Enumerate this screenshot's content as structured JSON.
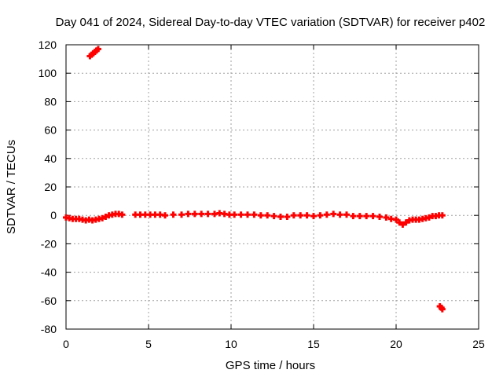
{
  "chart_data": {
    "type": "scatter",
    "title": "Day 041 of 2024, Sidereal Day-to-day VTEC variation (SDTVAR) for receiver p402",
    "xlabel": "GPS time / hours",
    "ylabel": "SDTVAR / TECUs",
    "xlim": [
      0,
      25
    ],
    "ylim": [
      -80,
      120
    ],
    "xticks": [
      0,
      5,
      10,
      15,
      20,
      25
    ],
    "yticks": [
      -80,
      -60,
      -40,
      -20,
      0,
      20,
      40,
      60,
      80,
      100,
      120
    ],
    "x_tick_labels": [
      "0",
      "5",
      "10",
      "15",
      "20",
      "25"
    ],
    "y_tick_labels": [
      "-80",
      "-60",
      "-40",
      "-20",
      "0",
      "20",
      "40",
      "60",
      "80",
      "100",
      "120"
    ],
    "grid": true,
    "series": [
      {
        "name": "SDTVAR",
        "color": "#ff0000",
        "x": [
          0.0,
          0.2,
          0.4,
          0.6,
          0.8,
          1.0,
          1.2,
          1.4,
          1.6,
          1.8,
          2.0,
          2.2,
          2.4,
          2.6,
          2.8,
          3.0,
          3.2,
          3.4,
          4.2,
          4.5,
          4.8,
          5.1,
          5.4,
          5.7,
          6.0,
          6.5,
          7.0,
          7.4,
          7.8,
          8.2,
          8.6,
          9.0,
          9.3,
          9.6,
          9.9,
          10.2,
          10.6,
          11.0,
          11.4,
          11.8,
          12.2,
          12.6,
          13.0,
          13.4,
          13.8,
          14.2,
          14.6,
          15.0,
          15.4,
          15.8,
          16.2,
          16.6,
          17.0,
          17.4,
          17.8,
          18.2,
          18.6,
          19.0,
          19.4,
          19.7,
          20.0,
          20.2,
          20.4,
          20.6,
          20.8,
          21.0,
          21.2,
          21.4,
          21.6,
          21.8,
          22.0,
          22.2,
          22.4,
          22.6,
          22.8,
          1.45,
          1.55,
          1.65,
          1.75,
          1.85,
          1.95,
          22.65,
          22.75,
          22.8
        ],
        "y": [
          -1.5,
          -2.0,
          -2.5,
          -2.5,
          -2.5,
          -3.0,
          -3.5,
          -3.0,
          -3.5,
          -3.0,
          -2.5,
          -2.0,
          -1.0,
          0.0,
          0.5,
          1.0,
          1.0,
          0.5,
          0.5,
          0.5,
          0.5,
          0.5,
          0.5,
          0.5,
          0.0,
          0.5,
          0.5,
          1.0,
          1.0,
          1.0,
          1.0,
          1.0,
          1.5,
          1.0,
          0.5,
          0.5,
          0.5,
          0.5,
          0.5,
          0.0,
          0.0,
          -0.5,
          -1.0,
          -1.0,
          0.0,
          0.0,
          0.0,
          -0.5,
          0.0,
          0.5,
          1.0,
          0.5,
          0.5,
          -0.5,
          -0.5,
          -0.5,
          -0.5,
          -1.0,
          -1.5,
          -2.5,
          -3.0,
          -5.0,
          -6.5,
          -5.0,
          -3.5,
          -3.0,
          -3.0,
          -3.0,
          -2.5,
          -2.0,
          -1.5,
          -0.5,
          -0.5,
          0.0,
          0.0,
          112,
          113,
          114,
          115,
          116,
          117,
          -64,
          -65,
          -66
        ]
      }
    ]
  }
}
